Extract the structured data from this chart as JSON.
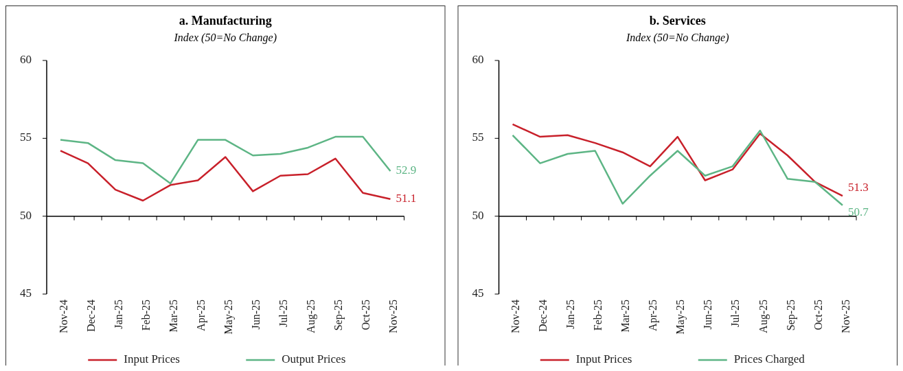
{
  "chart_data": [
    {
      "type": "line",
      "title": "a. Manufacturing",
      "subtitle": "Index (50=No Change)",
      "categories": [
        "Nov-24",
        "Dec-24",
        "Jan-25",
        "Feb-25",
        "Mar-25",
        "Apr-25",
        "May-25",
        "Jun-25",
        "Jul-25",
        "Aug-25",
        "Sep-25",
        "Oct-25",
        "Nov-25"
      ],
      "ylim": [
        45,
        60
      ],
      "yticks": [
        45,
        50,
        55,
        60
      ],
      "grid": false,
      "ref_lines": [
        {
          "axis": "y",
          "value": 50,
          "color": "#000000"
        }
      ],
      "legend": "bottom",
      "series": [
        {
          "name": "Input Prices",
          "color": "#c8202a",
          "values": [
            54.2,
            53.4,
            51.7,
            51.0,
            52.0,
            52.3,
            53.8,
            51.6,
            52.6,
            52.7,
            53.7,
            51.5,
            51.1
          ],
          "value_labels": [
            null,
            null,
            null,
            null,
            null,
            null,
            null,
            null,
            null,
            null,
            null,
            null,
            "51.1"
          ]
        },
        {
          "name": "Output Prices",
          "color": "#5db585",
          "values": [
            54.9,
            54.7,
            53.6,
            53.4,
            52.1,
            54.9,
            54.9,
            53.9,
            54.0,
            54.4,
            55.1,
            55.1,
            52.9
          ],
          "value_labels": [
            null,
            null,
            null,
            null,
            null,
            null,
            null,
            null,
            null,
            null,
            null,
            null,
            "52.9"
          ]
        }
      ]
    },
    {
      "type": "line",
      "title": "b. Services",
      "subtitle": "Index (50=No Change)",
      "categories": [
        "Nov-24",
        "Dec-24",
        "Jan-25",
        "Feb-25",
        "Mar-25",
        "Apr-25",
        "May-25",
        "Jun-25",
        "Jul-25",
        "Aug-25",
        "Sep-25",
        "Oct-25",
        "Nov-25"
      ],
      "ylim": [
        45,
        60
      ],
      "yticks": [
        45,
        50,
        55,
        60
      ],
      "grid": false,
      "ref_lines": [
        {
          "axis": "y",
          "value": 50,
          "color": "#000000"
        }
      ],
      "legend": "bottom",
      "series": [
        {
          "name": "Input Prices",
          "color": "#c8202a",
          "values": [
            55.9,
            55.1,
            55.2,
            54.7,
            54.1,
            53.2,
            55.1,
            52.3,
            53.0,
            55.3,
            53.9,
            52.2,
            51.3
          ],
          "value_labels": [
            null,
            null,
            null,
            null,
            null,
            null,
            null,
            null,
            null,
            null,
            null,
            null,
            "51.3"
          ]
        },
        {
          "name": "Prices Charged",
          "color": "#5db585",
          "values": [
            55.2,
            53.4,
            54.0,
            54.2,
            50.8,
            52.6,
            54.2,
            52.6,
            53.2,
            55.5,
            52.4,
            52.2,
            50.7
          ],
          "value_labels": [
            null,
            null,
            null,
            null,
            null,
            null,
            null,
            null,
            null,
            null,
            null,
            null,
            "50.7"
          ]
        }
      ]
    }
  ]
}
